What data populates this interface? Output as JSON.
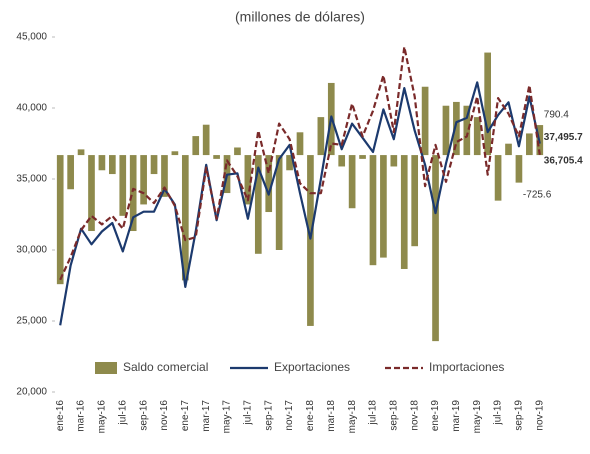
{
  "chart_data": {
    "type": "bar-line",
    "title": "(millones de dólares)",
    "categories": [
      "ene-16",
      null,
      "mar-16",
      null,
      "may-16",
      null,
      "jul-16",
      null,
      "sep-16",
      null,
      "nov-16",
      null,
      "ene-17",
      null,
      "mar-17",
      null,
      "may-17",
      null,
      "jul-17",
      null,
      "sep-17",
      null,
      "nov-17",
      null,
      "ene-18",
      null,
      "mar-18",
      null,
      "may-18",
      null,
      "jul-18",
      null,
      "sep-18",
      null,
      "nov-18",
      null,
      "ene-19",
      null,
      "mar-19",
      null,
      "may-19",
      null,
      "jul-19",
      null,
      "sep-19",
      null,
      "nov-19"
    ],
    "series": [
      {
        "name": "Saldo comercial",
        "kind": "bar",
        "axis": "y2",
        "color": "#8e8a4c",
        "values": [
          -3400,
          -900,
          150,
          -2000,
          -400,
          -500,
          -1600,
          -2000,
          -1300,
          -500,
          -1100,
          100,
          -3300,
          500,
          800,
          -100,
          -1000,
          200,
          -1300,
          -2600,
          -1500,
          -2500,
          -400,
          600,
          -4500,
          1000,
          1900,
          -300,
          -1400,
          -100,
          -2900,
          -2700,
          -300,
          -3000,
          -2400,
          1800,
          -4900,
          1300,
          1400,
          1300,
          1000,
          2700,
          -1200,
          300,
          -725.6,
          570,
          790.4
        ],
        "value_labels": [
          null,
          null,
          null,
          null,
          null,
          null,
          null,
          null,
          null,
          null,
          null,
          null,
          null,
          null,
          null,
          null,
          null,
          null,
          null,
          null,
          null,
          null,
          null,
          null,
          null,
          null,
          null,
          null,
          null,
          null,
          null,
          null,
          null,
          null,
          null,
          null,
          null,
          null,
          null,
          null,
          null,
          null,
          null,
          null,
          "-725.6",
          null,
          "790.4"
        ]
      },
      {
        "name": "Exportaciones",
        "kind": "line",
        "color": "#1c3a6e",
        "values": [
          24700,
          28900,
          31500,
          30400,
          31300,
          31900,
          29900,
          32300,
          32700,
          32700,
          34300,
          33200,
          27400,
          31300,
          36000,
          32100,
          35300,
          35400,
          32200,
          35800,
          33900,
          36400,
          37400,
          34000,
          30800,
          35000,
          39400,
          37100,
          38900,
          37900,
          36900,
          39900,
          37800,
          41400,
          38400,
          36000,
          32600,
          36100,
          39000,
          39300,
          41800,
          38300,
          39500,
          40400,
          37300,
          40800,
          37495.7
        ],
        "value_labels": [
          null,
          null,
          null,
          null,
          null,
          null,
          null,
          null,
          null,
          null,
          null,
          null,
          null,
          null,
          null,
          null,
          null,
          null,
          null,
          null,
          null,
          null,
          null,
          null,
          null,
          null,
          null,
          null,
          null,
          null,
          null,
          null,
          null,
          null,
          null,
          null,
          null,
          null,
          null,
          null,
          null,
          null,
          null,
          null,
          null,
          null,
          "37,495.7"
        ]
      },
      {
        "name": "Importaciones",
        "kind": "line",
        "dashed": true,
        "color": "#7a2a2a",
        "values": [
          27900,
          29500,
          31400,
          32400,
          31800,
          32400,
          31500,
          34300,
          34000,
          33300,
          34400,
          33100,
          30700,
          30900,
          35800,
          32200,
          36300,
          35200,
          33500,
          38400,
          35400,
          38900,
          37800,
          34700,
          34000,
          34000,
          37500,
          37400,
          40300,
          38000,
          39800,
          42300,
          38300,
          44300,
          40800,
          34500,
          37400,
          34800,
          37600,
          38000,
          40800,
          35300,
          40700,
          39600,
          38000,
          41600,
          36705.4
        ],
        "value_labels": [
          null,
          null,
          null,
          null,
          null,
          null,
          null,
          null,
          null,
          null,
          null,
          null,
          null,
          null,
          null,
          null,
          null,
          null,
          null,
          null,
          null,
          null,
          null,
          null,
          null,
          null,
          null,
          null,
          null,
          null,
          null,
          null,
          null,
          null,
          null,
          null,
          null,
          null,
          null,
          null,
          null,
          null,
          null,
          null,
          null,
          null,
          "36,705.4"
        ]
      }
    ],
    "ylim": [
      20000,
      45000
    ],
    "yticks": [
      {
        "value": 20000,
        "label": "20,000"
      },
      {
        "value": 25000,
        "label": "25,000"
      },
      {
        "value": 30000,
        "label": "30,000"
      },
      {
        "value": 35000,
        "label": "35,000"
      },
      {
        "value": 40000,
        "label": "40,000"
      },
      {
        "value": 45000,
        "label": "45,000"
      }
    ],
    "y2lim": [
      -6240,
      3110
    ],
    "grid": false,
    "legend": "bottom"
  }
}
